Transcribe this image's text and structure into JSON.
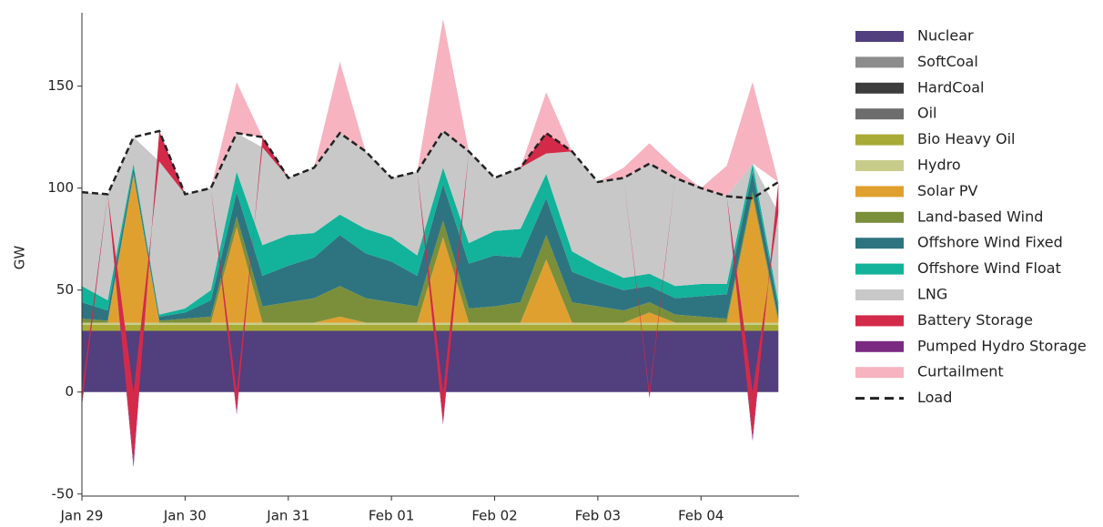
{
  "chart_data": {
    "type": "area",
    "stacked": true,
    "ylabel": "GW",
    "x": [
      0,
      0.25,
      0.5,
      0.75,
      1,
      1.25,
      1.5,
      1.75,
      2,
      2.25,
      2.5,
      2.75,
      3,
      3.25,
      3.5,
      3.75,
      4,
      4.25,
      4.5,
      4.75,
      5,
      5.25,
      5.5,
      5.75,
      6,
      6.25,
      6.5,
      6.75
    ],
    "xlim": [
      0,
      6.95
    ],
    "xticks": [
      {
        "value": 0,
        "label": "Jan 29"
      },
      {
        "value": 1,
        "label": "Jan 30"
      },
      {
        "value": 2,
        "label": "Jan 31"
      },
      {
        "value": 3,
        "label": "Feb 01"
      },
      {
        "value": 4,
        "label": "Feb 02"
      },
      {
        "value": 5,
        "label": "Feb 03"
      },
      {
        "value": 6,
        "label": "Feb 04"
      }
    ],
    "ylim": [
      -51,
      186
    ],
    "yticks": [
      -50,
      0,
      50,
      100,
      150
    ],
    "grid": false,
    "legend": "right",
    "series": [
      {
        "name": "Nuclear",
        "color": "#523f7d",
        "values": [
          30,
          30,
          30,
          30,
          30,
          30,
          30,
          30,
          30,
          30,
          30,
          30,
          30,
          30,
          30,
          30,
          30,
          30,
          30,
          30,
          30,
          30,
          30,
          30,
          30,
          30,
          30,
          30
        ]
      },
      {
        "name": "SoftCoal",
        "color": "#8c8c8c",
        "values": [
          0,
          0,
          0,
          0,
          0,
          0,
          0,
          0,
          0,
          0,
          0,
          0,
          0,
          0,
          0,
          0,
          0,
          0,
          0,
          0,
          0,
          0,
          0,
          0,
          0,
          0,
          0,
          0
        ]
      },
      {
        "name": "HardCoal",
        "color": "#3d3d3d",
        "values": [
          0,
          0,
          0,
          0,
          0,
          0,
          0,
          0,
          0,
          0,
          0,
          0,
          0,
          0,
          0,
          0,
          0,
          0,
          0,
          0,
          0,
          0,
          0,
          0,
          0,
          0,
          0,
          0
        ]
      },
      {
        "name": "Oil",
        "color": "#6d6d6d",
        "values": [
          0,
          0,
          0,
          0,
          0,
          0,
          0,
          0,
          0,
          0,
          0,
          0,
          0,
          0,
          0,
          0,
          0,
          0,
          0,
          0,
          0,
          0,
          0,
          0,
          0,
          0,
          0,
          0
        ]
      },
      {
        "name": "Bio Heavy Oil",
        "color": "#a8ab35",
        "values": [
          3,
          3,
          3,
          3,
          3,
          3,
          3,
          3,
          3,
          3,
          3,
          3,
          3,
          3,
          3,
          3,
          3,
          3,
          3,
          3,
          3,
          3,
          3,
          3,
          3,
          3,
          3,
          3
        ]
      },
      {
        "name": "Hydro",
        "color": "#c8cc8a",
        "values": [
          1,
          1,
          1,
          1,
          1,
          1,
          1,
          1,
          1,
          1,
          1,
          1,
          1,
          1,
          1,
          1,
          1,
          1,
          1,
          1,
          1,
          1,
          1,
          1,
          1,
          1,
          1,
          1
        ]
      },
      {
        "name": "Solar PV",
        "color": "#e0a030",
        "values": [
          0,
          0,
          72,
          0,
          0,
          0,
          47,
          0,
          0,
          0,
          3,
          0,
          0,
          0,
          42,
          0,
          0,
          0,
          31,
          0,
          0,
          0,
          5,
          0,
          0,
          0,
          62,
          0
        ]
      },
      {
        "name": "Land-based Wind",
        "color": "#7b8f3a",
        "values": [
          2,
          1,
          1,
          1,
          2,
          3,
          5,
          8,
          10,
          12,
          15,
          12,
          10,
          8,
          8,
          7,
          8,
          10,
          12,
          10,
          8,
          6,
          5,
          4,
          3,
          2,
          2,
          2
        ]
      },
      {
        "name": "Offshore Wind Fixed",
        "color": "#2e7480",
        "values": [
          8,
          5,
          3,
          2,
          3,
          8,
          12,
          15,
          18,
          20,
          25,
          22,
          20,
          15,
          18,
          22,
          25,
          22,
          18,
          15,
          12,
          10,
          8,
          8,
          10,
          12,
          10,
          5
        ]
      },
      {
        "name": "Offshore Wind Float",
        "color": "#12b39a",
        "values": [
          8,
          5,
          2,
          1,
          2,
          5,
          10,
          15,
          15,
          12,
          10,
          12,
          12,
          10,
          8,
          10,
          12,
          14,
          12,
          10,
          8,
          6,
          6,
          6,
          6,
          5,
          4,
          3
        ]
      },
      {
        "name": "LNG",
        "color": "#c8c8c8",
        "values": [
          46,
          52,
          13,
          75,
          56,
          50,
          19,
          48,
          28,
          32,
          40,
          38,
          29,
          41,
          18,
          45,
          26,
          30,
          10,
          49,
          41,
          49,
          54,
          53,
          47,
          43,
          0,
          44
        ]
      },
      {
        "name": "Battery Storage",
        "color": "#d42a4a",
        "values": [
          -6,
          0,
          -35,
          15,
          0,
          0,
          -10,
          5,
          0,
          0,
          0,
          0,
          0,
          0,
          -15,
          0,
          0,
          0,
          10,
          0,
          0,
          0,
          -3,
          0,
          0,
          0,
          -22,
          15
        ]
      },
      {
        "name": "Pumped Hydro Storage",
        "color": "#7a2a80",
        "values": [
          -1,
          0,
          -2,
          0,
          0,
          0,
          -1,
          0,
          0,
          0,
          0,
          0,
          0,
          0,
          -1,
          0,
          0,
          0,
          0,
          0,
          0,
          0,
          0,
          0,
          0,
          0,
          -2,
          0
        ]
      },
      {
        "name": "Curtailment",
        "color": "#f7b3c0",
        "values": [
          0,
          0,
          0,
          0,
          0,
          0,
          25,
          0,
          0,
          0,
          35,
          0,
          0,
          0,
          55,
          0,
          0,
          0,
          20,
          0,
          0,
          5,
          10,
          5,
          0,
          15,
          40,
          0
        ]
      },
      {
        "name": "Load",
        "color": "#222222",
        "type": "line",
        "dashed": true,
        "values": [
          98,
          97,
          125,
          128,
          97,
          100,
          127,
          125,
          105,
          110,
          127,
          118,
          105,
          108,
          128,
          118,
          105,
          110,
          127,
          118,
          103,
          105,
          112,
          105,
          100,
          96,
          95,
          103
        ]
      }
    ]
  }
}
